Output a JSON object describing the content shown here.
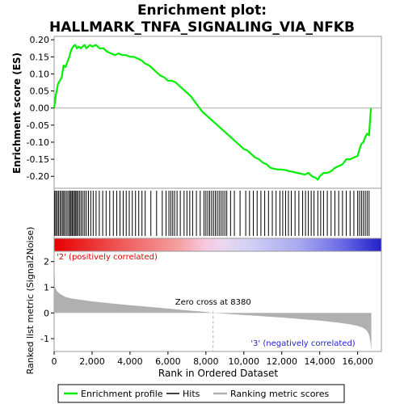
{
  "chart_data": {
    "type": "line",
    "title_lines": [
      "Enrichment plot:",
      "HALLMARK_TNFA_SIGNALING_VIA_NFKB"
    ],
    "xlabel": "Rank in Ordered Dataset",
    "x_ticks": [
      0,
      2000,
      4000,
      6000,
      8000,
      10000,
      12000,
      14000,
      16000
    ],
    "x_tick_labels": [
      "0",
      "2,000",
      "4,000",
      "6,000",
      "8,000",
      "10,000",
      "12,000",
      "14,000",
      "16,000"
    ],
    "xlim": [
      0,
      17250
    ],
    "top_panel": {
      "ylabel": "Enrichment score (ES)",
      "ylim": [
        -0.235,
        0.21
      ],
      "y_ticks": [
        0.2,
        0.15,
        0.1,
        0.05,
        0.0,
        -0.05,
        -0.1,
        -0.15,
        -0.2
      ],
      "y_tick_labels": [
        "0.20",
        "0.15",
        "0.10",
        "0.05",
        "0.00",
        "-0.05",
        "-0.10",
        "-0.15",
        "-0.20"
      ],
      "series": [
        {
          "name": "Enrichment profile",
          "color": "#00ee00",
          "x": [
            0,
            100,
            200,
            300,
            400,
            500,
            600,
            700,
            800,
            900,
            1000,
            1100,
            1200,
            1300,
            1400,
            1500,
            1600,
            1700,
            1800,
            1900,
            2000,
            2200,
            2400,
            2600,
            2800,
            3000,
            3200,
            3400,
            3600,
            3800,
            4000,
            4200,
            4400,
            4600,
            4800,
            5000,
            5200,
            5400,
            5600,
            5800,
            6000,
            6200,
            6400,
            6600,
            6800,
            7000,
            7200,
            7400,
            7600,
            7800,
            8000,
            8200,
            8400,
            8600,
            8800,
            9000,
            9200,
            9400,
            9600,
            9800,
            10000,
            10200,
            10400,
            10600,
            10800,
            11000,
            11200,
            11400,
            11600,
            11800,
            12000,
            12200,
            12400,
            12600,
            12800,
            13000,
            13200,
            13400,
            13600,
            13800,
            13900,
            14000,
            14200,
            14400,
            14600,
            14800,
            15000,
            15200,
            15400,
            15600,
            15800,
            16000,
            16100,
            16200,
            16300,
            16400,
            16500,
            16600,
            16700
          ],
          "y": [
            0.0,
            0.04,
            0.07,
            0.08,
            0.09,
            0.125,
            0.12,
            0.135,
            0.15,
            0.17,
            0.18,
            0.185,
            0.175,
            0.18,
            0.175,
            0.18,
            0.185,
            0.175,
            0.18,
            0.185,
            0.18,
            0.185,
            0.175,
            0.175,
            0.165,
            0.16,
            0.155,
            0.16,
            0.155,
            0.155,
            0.15,
            0.15,
            0.145,
            0.14,
            0.13,
            0.125,
            0.115,
            0.105,
            0.095,
            0.09,
            0.08,
            0.08,
            0.075,
            0.065,
            0.055,
            0.045,
            0.035,
            0.02,
            0.005,
            -0.01,
            -0.02,
            -0.03,
            -0.04,
            -0.05,
            -0.06,
            -0.07,
            -0.08,
            -0.09,
            -0.1,
            -0.11,
            -0.12,
            -0.125,
            -0.135,
            -0.145,
            -0.15,
            -0.16,
            -0.165,
            -0.175,
            -0.178,
            -0.18,
            -0.18,
            -0.182,
            -0.185,
            -0.187,
            -0.19,
            -0.192,
            -0.195,
            -0.19,
            -0.2,
            -0.205,
            -0.21,
            -0.2,
            -0.19,
            -0.19,
            -0.185,
            -0.175,
            -0.17,
            -0.165,
            -0.15,
            -0.15,
            -0.145,
            -0.14,
            -0.12,
            -0.105,
            -0.1,
            -0.085,
            -0.075,
            -0.08,
            0.0
          ]
        }
      ],
      "zero_line": true
    },
    "hits_panel": {
      "legend_name": "Hits",
      "hit_positions": [
        30,
        90,
        160,
        230,
        310,
        380,
        460,
        520,
        600,
        680,
        760,
        830,
        890,
        950,
        1010,
        1080,
        1140,
        1200,
        1270,
        1350,
        1430,
        1520,
        1610,
        1700,
        1810,
        1930,
        2060,
        2210,
        2380,
        2560,
        2740,
        2930,
        3120,
        3300,
        3470,
        3640,
        3800,
        3960,
        4120,
        4290,
        4460,
        4630,
        4800,
        5100,
        5400,
        5700,
        5900,
        6050,
        6150,
        6250,
        6350,
        6480,
        6650,
        6850,
        7000,
        7150,
        7300,
        7500,
        7700,
        7900,
        8000,
        8100,
        8200,
        8300,
        8400,
        8500,
        8600,
        8700,
        8800,
        8900,
        9000,
        9100,
        9300,
        9500,
        9800,
        10100,
        10300,
        10500,
        10700,
        10900,
        11100,
        11300,
        11500,
        11700,
        11900,
        12050,
        12200,
        12350,
        12500,
        12700,
        12900,
        13100,
        13250,
        13400,
        13550,
        13700,
        13900,
        14050,
        14200,
        14400,
        14600,
        14800,
        15000,
        15200,
        15400,
        15600,
        15800,
        16000,
        16100,
        16200,
        16300,
        16400,
        16500,
        16600
      ]
    },
    "ranked_panel": {
      "ylabel": "Ranked list metric (Signal2Noise)",
      "ylim": [
        -1.5,
        2.4
      ],
      "y_ticks": [
        2,
        1,
        0,
        -1
      ],
      "y_tick_labels": [
        "2",
        "1",
        "0",
        "-1"
      ],
      "legend_name": "Ranking metric scores",
      "fill_color": "#b0b0b0",
      "x": [
        0,
        50,
        150,
        300,
        600,
        1000,
        2000,
        3000,
        4000,
        5000,
        6000,
        7000,
        8000,
        8380,
        9000,
        10000,
        11000,
        12000,
        13000,
        14000,
        15000,
        15500,
        16000,
        16300,
        16500,
        16600,
        16680,
        16720
      ],
      "values": [
        2.2,
        1.0,
        0.85,
        0.75,
        0.62,
        0.55,
        0.45,
        0.37,
        0.3,
        0.24,
        0.17,
        0.1,
        0.04,
        0.0,
        -0.03,
        -0.08,
        -0.13,
        -0.18,
        -0.24,
        -0.3,
        -0.38,
        -0.43,
        -0.5,
        -0.58,
        -0.7,
        -0.85,
        -1.15,
        -1.5
      ],
      "zero_cross_label": "Zero cross at 8380",
      "zero_cross_x": 8380,
      "pos_label": "'2' (positively correlated)",
      "neg_label": "'3' (negatively correlated)"
    },
    "legend": {
      "placement": "bottom",
      "entries": [
        "Enrichment profile",
        "Hits",
        "Ranking metric scores"
      ]
    }
  }
}
